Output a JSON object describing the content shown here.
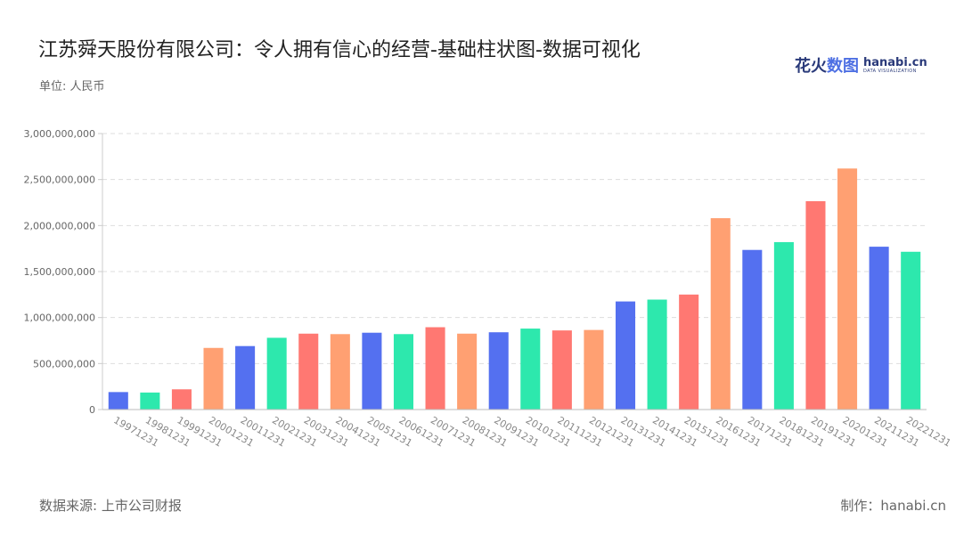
{
  "header": {
    "title": "江苏舜天股份有限公司：令人拥有信心的经营-基础柱状图-数据可视化",
    "unit": "单位: 人民币"
  },
  "logo": {
    "cn_part1": "花火",
    "cn_part2": "数图",
    "en": "hanabi.cn",
    "tagline": "DATA VISUALIZATION"
  },
  "footer": {
    "source": "数据来源: 上市公司财报",
    "maker": "制作：hanabi.cn"
  },
  "chart_data": {
    "type": "bar",
    "title": "江苏舜天股份有限公司：令人拥有信心的经营-基础柱状图-数据可视化",
    "xlabel": "",
    "ylabel": "",
    "ylim": [
      0,
      3000000000
    ],
    "yticks": [
      0,
      500000000,
      1000000000,
      1500000000,
      2000000000,
      2500000000,
      3000000000
    ],
    "grid": true,
    "categories": [
      "19971231",
      "19981231",
      "19991231",
      "20001231",
      "20011231",
      "20021231",
      "20031231",
      "20041231",
      "20051231",
      "20061231",
      "20071231",
      "20081231",
      "20091231",
      "20101231",
      "20111231",
      "20121231",
      "20131231",
      "20141231",
      "20151231",
      "20161231",
      "20171231",
      "20181231",
      "20191231",
      "20201231",
      "20211231",
      "20221231"
    ],
    "values": [
      190000000,
      185000000,
      220000000,
      670000000,
      690000000,
      780000000,
      825000000,
      820000000,
      835000000,
      820000000,
      895000000,
      825000000,
      840000000,
      880000000,
      860000000,
      865000000,
      1175000000,
      1195000000,
      1250000000,
      2080000000,
      1735000000,
      1820000000,
      2265000000,
      2620000000,
      1770000000,
      1715000000
    ],
    "colors": [
      "#5470f0",
      "#2de8ad",
      "#ff7872",
      "#ffa072"
    ]
  }
}
